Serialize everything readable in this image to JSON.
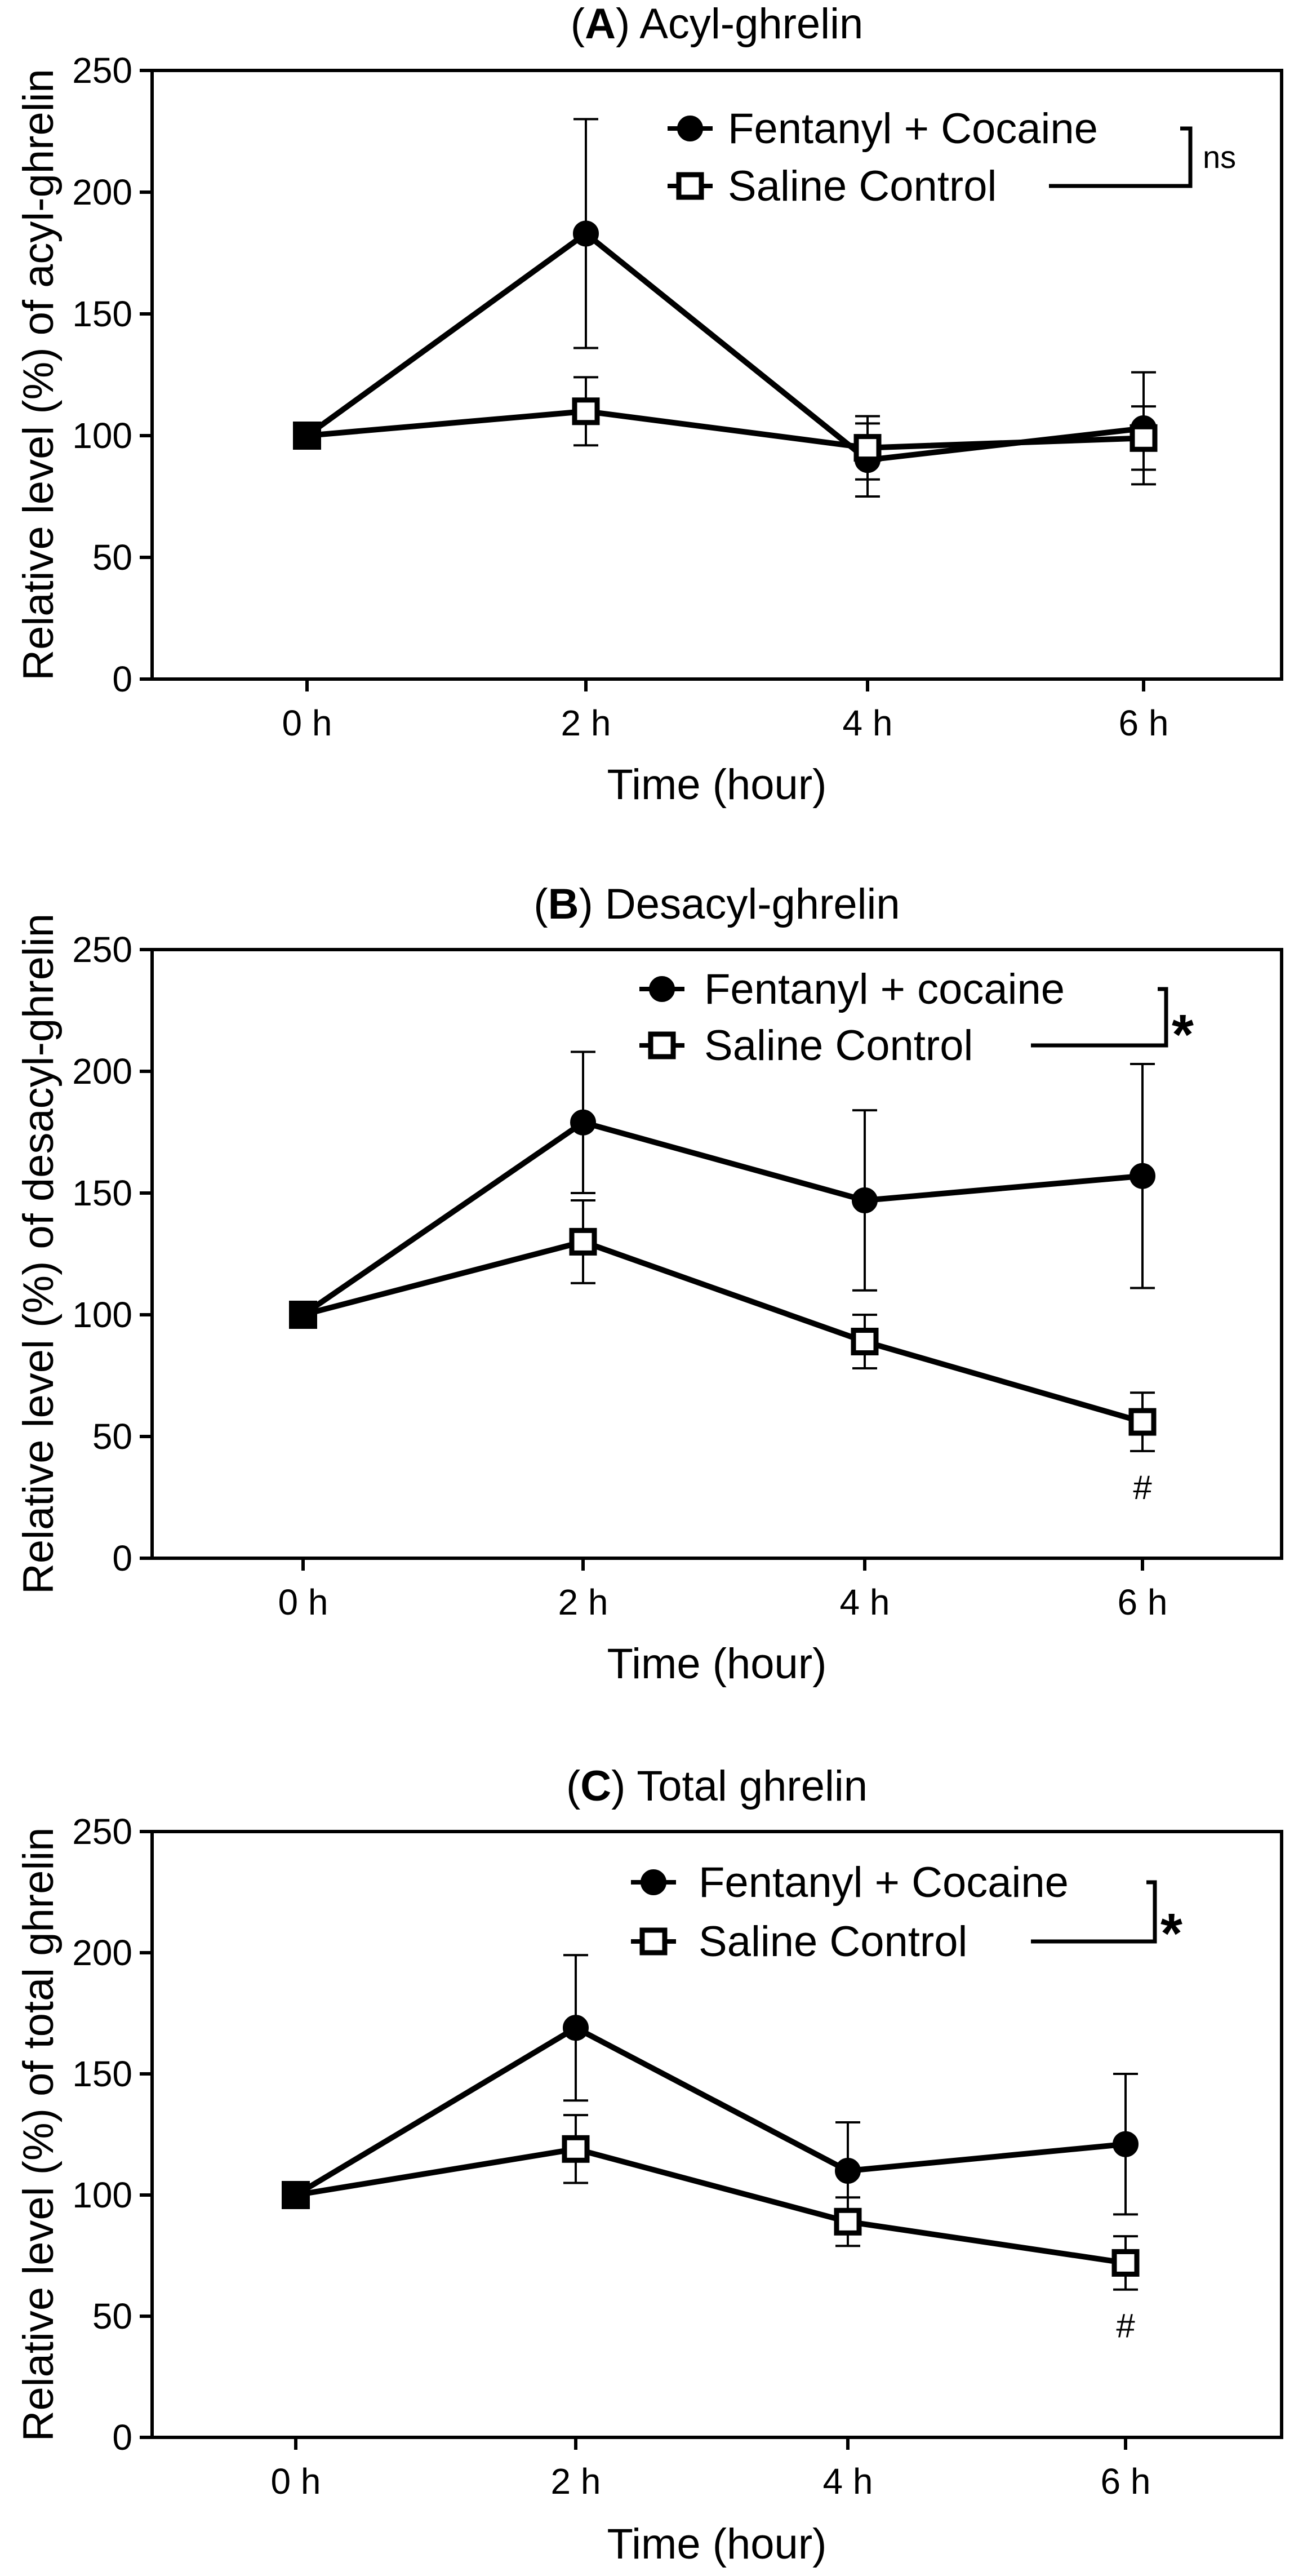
{
  "chart_data": [
    {
      "type": "line",
      "panel": "A",
      "title_letter": "A",
      "title_open": "(",
      "title_rest": ") Acyl-ghrelin",
      "xlabel": "Time (hour)",
      "ylabel": "Relative level (%) of acyl-ghrelin",
      "categories": [
        "0 h",
        "2 h",
        "4 h",
        "6 h"
      ],
      "ylim": [
        0,
        250
      ],
      "yticks": [
        "0",
        "50",
        "100",
        "150",
        "200",
        "250"
      ],
      "ytick_values": [
        0,
        50,
        100,
        150,
        200,
        250
      ],
      "series": [
        {
          "name": "Fentanyl + Cocaine",
          "marker": "circle",
          "values": [
            100,
            183,
            90,
            103
          ],
          "errors": [
            0,
            47,
            15,
            23
          ]
        },
        {
          "name": "Saline Control",
          "marker": "open-square",
          "values": [
            100,
            110,
            95,
            99
          ],
          "errors": [
            0,
            14,
            13,
            13
          ]
        }
      ],
      "significance": "ns",
      "point_annotations": []
    },
    {
      "type": "line",
      "panel": "B",
      "title_letter": "B",
      "title_open": "(",
      "title_rest": ") Desacyl-ghrelin",
      "xlabel": "Time (hour)",
      "ylabel": "Relative level (%) of desacyl-ghrelin",
      "categories": [
        "0 h",
        "2 h",
        "4 h",
        "6 h"
      ],
      "ylim": [
        0,
        250
      ],
      "yticks": [
        "0",
        "50",
        "100",
        "150",
        "200",
        "250"
      ],
      "ytick_values": [
        0,
        50,
        100,
        150,
        200,
        250
      ],
      "series": [
        {
          "name": "Fentanyl + cocaine",
          "marker": "circle",
          "values": [
            100,
            179,
            147,
            157
          ],
          "errors": [
            0,
            29,
            37,
            46
          ]
        },
        {
          "name": "Saline Control",
          "marker": "open-square",
          "values": [
            100,
            130,
            89,
            56
          ],
          "errors": [
            0,
            17,
            11,
            12
          ]
        }
      ],
      "significance": "*",
      "point_annotations": [
        {
          "series": 1,
          "category": 3,
          "text": "#"
        }
      ]
    },
    {
      "type": "line",
      "panel": "C",
      "title_letter": "C",
      "title_open": "(",
      "title_rest": ") Total ghrelin",
      "xlabel": "Time (hour)",
      "ylabel": "Relative level (%) of total ghrelin",
      "categories": [
        "0 h",
        "2 h",
        "4 h",
        "6 h"
      ],
      "ylim": [
        0,
        250
      ],
      "yticks": [
        "0",
        "50",
        "100",
        "150",
        "200",
        "250"
      ],
      "ytick_values": [
        0,
        50,
        100,
        150,
        200,
        250
      ],
      "series": [
        {
          "name": "Fentanyl + Cocaine",
          "marker": "circle",
          "values": [
            100,
            169,
            110,
            121
          ],
          "errors": [
            0,
            30,
            20,
            29
          ]
        },
        {
          "name": "Saline Control",
          "marker": "open-square",
          "values": [
            100,
            119,
            89,
            72
          ],
          "errors": [
            0,
            14,
            10,
            11
          ]
        }
      ],
      "significance": "*",
      "point_annotations": [
        {
          "series": 1,
          "category": 3,
          "text": "#"
        }
      ]
    }
  ]
}
